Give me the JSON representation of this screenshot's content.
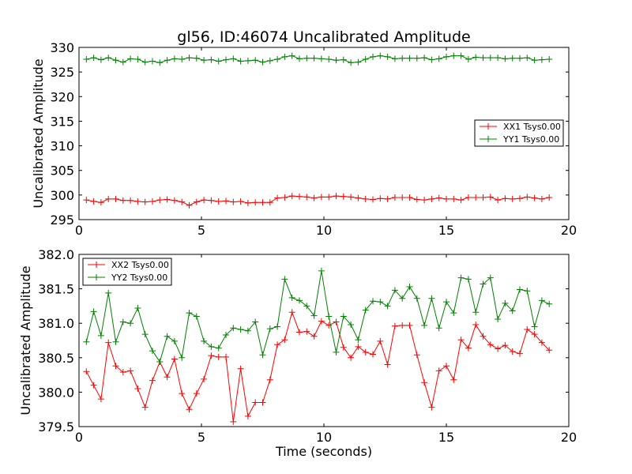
{
  "figure": {
    "title": "gl56, ID:46074 Uncalibrated Amplitude"
  },
  "colors": {
    "red": "#ff0000",
    "green": "#008000",
    "background": "#ffffff",
    "axes": "#000000"
  },
  "chart_data": [
    {
      "type": "line",
      "title": "gl56, ID:46074 Uncalibrated Amplitude",
      "xlabel": "",
      "ylabel": "Uncalibrated Amplitude",
      "xlim": [
        0,
        20
      ],
      "ylim": [
        295,
        330
      ],
      "xticks": [
        0,
        5,
        10,
        15,
        20
      ],
      "xtick_labels": [
        "0",
        "5",
        "10",
        "15",
        "20"
      ],
      "yticks": [
        295,
        300,
        305,
        310,
        315,
        320,
        325,
        330
      ],
      "ytick_labels": [
        "295",
        "300",
        "305",
        "310",
        "315",
        "320",
        "325",
        "330"
      ],
      "grid": false,
      "legend_position": "center-right",
      "marker": "+",
      "x": [
        0.3,
        0.6,
        0.9,
        1.2,
        1.5,
        1.8,
        2.1,
        2.4,
        2.7,
        3.0,
        3.3,
        3.6,
        3.9,
        4.2,
        4.5,
        4.8,
        5.1,
        5.4,
        5.7,
        6.0,
        6.3,
        6.6,
        6.9,
        7.2,
        7.5,
        7.8,
        8.1,
        8.4,
        8.7,
        9.0,
        9.3,
        9.6,
        9.9,
        10.2,
        10.5,
        10.8,
        11.1,
        11.4,
        11.7,
        12.0,
        12.3,
        12.6,
        12.9,
        13.2,
        13.5,
        13.8,
        14.1,
        14.4,
        14.7,
        15.0,
        15.3,
        15.6,
        15.9,
        16.2,
        16.5,
        16.8,
        17.1,
        17.4,
        17.7,
        18.0,
        18.3,
        18.6,
        18.9,
        19.2
      ],
      "series": [
        {
          "name": "XX1 Tsys0.00",
          "color": "#ff0000",
          "values": [
            299.0,
            298.7,
            298.5,
            299.2,
            299.2,
            298.9,
            298.9,
            298.7,
            298.6,
            298.7,
            299.0,
            299.1,
            298.9,
            298.6,
            297.9,
            298.6,
            299.0,
            298.9,
            298.7,
            298.8,
            298.6,
            298.7,
            298.4,
            298.5,
            298.5,
            298.5,
            299.4,
            299.5,
            299.8,
            299.7,
            299.6,
            299.4,
            299.6,
            299.6,
            299.8,
            299.7,
            299.6,
            299.4,
            299.2,
            299.1,
            299.3,
            299.2,
            299.5,
            299.5,
            299.5,
            299.1,
            299.0,
            299.2,
            299.4,
            299.2,
            299.2,
            299.0,
            299.5,
            299.5,
            299.5,
            299.6,
            299.0,
            299.3,
            299.2,
            299.3,
            299.6,
            299.4,
            299.2,
            299.5
          ]
        },
        {
          "name": "YY1 Tsys0.00",
          "color": "#008000",
          "values": [
            327.6,
            327.9,
            327.5,
            327.9,
            327.4,
            327.0,
            327.7,
            327.6,
            327.0,
            327.2,
            326.9,
            327.4,
            327.7,
            327.6,
            327.9,
            327.8,
            327.4,
            327.5,
            327.2,
            327.5,
            327.7,
            327.2,
            327.3,
            327.4,
            327.0,
            327.3,
            327.6,
            328.1,
            328.3,
            327.7,
            327.8,
            327.8,
            327.7,
            327.6,
            327.4,
            327.5,
            326.9,
            327.0,
            327.6,
            328.1,
            328.3,
            328.1,
            327.7,
            327.8,
            327.8,
            327.8,
            327.9,
            327.5,
            327.7,
            328.1,
            328.3,
            328.3,
            327.6,
            328.0,
            327.9,
            327.9,
            327.9,
            327.7,
            327.8,
            327.8,
            327.9,
            327.4,
            327.5,
            327.6
          ]
        }
      ]
    },
    {
      "type": "line",
      "title": "",
      "xlabel": "Time (seconds)",
      "ylabel": "Uncalibrated Amplitude",
      "xlim": [
        0,
        20
      ],
      "ylim": [
        379.5,
        382.0
      ],
      "xticks": [
        0,
        5,
        10,
        15,
        20
      ],
      "xtick_labels": [
        "0",
        "5",
        "10",
        "15",
        "20"
      ],
      "yticks": [
        379.5,
        380.0,
        380.5,
        381.0,
        381.5,
        382.0
      ],
      "ytick_labels": [
        "379.5",
        "380.0",
        "380.5",
        "381.0",
        "381.5",
        "382.0"
      ],
      "grid": false,
      "legend_position": "top-left",
      "marker": "+",
      "x": [
        0.3,
        0.6,
        0.9,
        1.2,
        1.5,
        1.8,
        2.1,
        2.4,
        2.7,
        3.0,
        3.3,
        3.6,
        3.9,
        4.2,
        4.5,
        4.8,
        5.1,
        5.4,
        5.7,
        6.0,
        6.3,
        6.6,
        6.9,
        7.2,
        7.5,
        7.8,
        8.1,
        8.4,
        8.7,
        9.0,
        9.3,
        9.6,
        9.9,
        10.2,
        10.5,
        10.8,
        11.1,
        11.4,
        11.7,
        12.0,
        12.3,
        12.6,
        12.9,
        13.2,
        13.5,
        13.8,
        14.1,
        14.4,
        14.7,
        15.0,
        15.3,
        15.6,
        15.9,
        16.2,
        16.5,
        16.8,
        17.1,
        17.4,
        17.7,
        18.0,
        18.3,
        18.6,
        18.9,
        19.2
      ],
      "series": [
        {
          "name": "XX2 Tsys0.00",
          "color": "#ff0000",
          "values": [
            380.3,
            380.1,
            379.9,
            380.72,
            380.38,
            380.29,
            380.31,
            380.05,
            379.78,
            380.17,
            380.44,
            380.22,
            380.48,
            379.98,
            379.75,
            379.98,
            380.19,
            380.53,
            380.51,
            380.51,
            379.57,
            380.34,
            379.65,
            379.85,
            379.85,
            380.18,
            380.69,
            380.76,
            381.16,
            380.87,
            380.88,
            380.81,
            381.03,
            380.97,
            381.02,
            380.65,
            380.5,
            380.66,
            380.58,
            380.55,
            380.74,
            380.4,
            380.96,
            380.97,
            380.97,
            380.54,
            380.14,
            379.78,
            380.31,
            380.38,
            380.18,
            380.76,
            380.64,
            380.98,
            380.81,
            380.69,
            380.63,
            380.68,
            380.59,
            380.56,
            380.91,
            380.84,
            380.72,
            380.61
          ]
        },
        {
          "name": "YY2 Tsys0.00",
          "color": "#008000",
          "values": [
            380.73,
            381.17,
            380.82,
            381.44,
            380.73,
            381.02,
            381.0,
            381.22,
            380.84,
            380.6,
            380.44,
            380.81,
            380.74,
            380.5,
            381.15,
            381.1,
            380.74,
            380.66,
            380.64,
            380.83,
            380.93,
            380.91,
            380.89,
            381.02,
            380.54,
            380.92,
            380.95,
            381.64,
            381.37,
            381.33,
            381.25,
            381.11,
            381.76,
            381.1,
            380.58,
            381.1,
            380.98,
            380.76,
            381.19,
            381.32,
            381.31,
            381.25,
            381.48,
            381.36,
            381.53,
            381.36,
            380.97,
            381.36,
            380.93,
            381.31,
            381.15,
            381.66,
            381.64,
            381.16,
            381.57,
            381.66,
            381.06,
            381.29,
            381.18,
            381.49,
            381.47,
            380.95,
            381.33,
            381.28
          ]
        }
      ]
    }
  ]
}
